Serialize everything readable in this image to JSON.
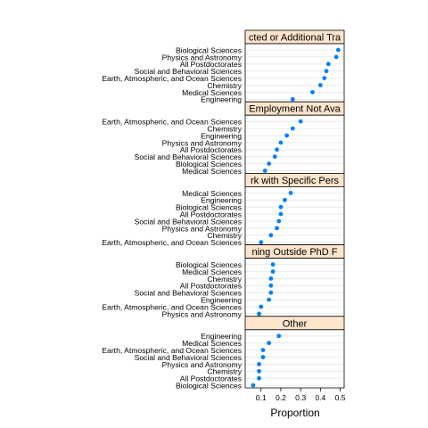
{
  "chart_data": {
    "type": "scatter",
    "xlabel": "Proportion",
    "xlim": [
      0.02,
      0.52
    ],
    "x_ticks": [
      "0.1",
      "0.2",
      "0.3",
      "0.4",
      "0.5"
    ],
    "x_tick_values": [
      0.1,
      0.2,
      0.3,
      0.4,
      0.5
    ],
    "grid": true,
    "point_color": "#0080ff",
    "strip_color": "#ffe5cc",
    "panels": [
      {
        "title": "Postdoc Expected or Additional Training",
        "title_visible": "cted or Additional Tra",
        "categories": [
          "Biological Sciences",
          "Physics and Astronomy",
          "All Postdoctorates",
          "Social and Behavioral Sciences",
          "Earth, Atmospheric, and Ocean Sciences",
          "Chemistry",
          "Medical Sciences",
          "Engineering"
        ],
        "values": [
          0.49,
          0.48,
          0.44,
          0.43,
          0.42,
          0.4,
          0.36,
          0.26
        ]
      },
      {
        "title": "Other Employment Not Available",
        "title_visible": "Employment Not Ava",
        "categories": [
          "Earth, Atmospheric, and Ocean Sciences",
          "Chemistry",
          "Engineering",
          "Physics and Astronomy",
          "All Postdoctorates",
          "Social and Behavioral Sciences",
          "Biological Sciences",
          "Medical Sciences"
        ],
        "values": [
          0.3,
          0.26,
          0.23,
          0.2,
          0.18,
          0.17,
          0.14,
          0.12
        ]
      },
      {
        "title": "Work with Specific Person",
        "title_visible": "rk with Specific Pers",
        "categories": [
          "Medical Sciences",
          "Engineering",
          "Biological Sciences",
          "All Postdoctorates",
          "Social and Behavioral Sciences",
          "Physics and Astronomy",
          "Chemistry",
          "Earth, Atmospheric, and Ocean Sciences"
        ],
        "values": [
          0.25,
          0.22,
          0.2,
          0.2,
          0.19,
          0.18,
          0.15,
          0.1
        ]
      },
      {
        "title": "Training Outside PhD Field",
        "title_visible": "ning Outside PhD F",
        "categories": [
          "Biological Sciences",
          "Medical Sciences",
          "Chemistry",
          "All Postdoctorates",
          "Social and Behavioral Sciences",
          "Engineering",
          "Earth, Atmospheric, and Ocean Sciences",
          "Physics and Astronomy"
        ],
        "values": [
          0.16,
          0.16,
          0.15,
          0.15,
          0.15,
          0.14,
          0.1,
          0.09
        ]
      },
      {
        "title": "Other",
        "title_visible": "Other",
        "categories": [
          "Engineering",
          "Medical Sciences",
          "Earth, Atmospheric, and Ocean Sciences",
          "Social and Behavioral Sciences",
          "Physics and Astronomy",
          "Chemistry",
          "All Postdoctorates",
          "Biological Sciences"
        ],
        "values": [
          0.19,
          0.14,
          0.11,
          0.11,
          0.09,
          0.09,
          0.09,
          0.06
        ]
      }
    ]
  }
}
